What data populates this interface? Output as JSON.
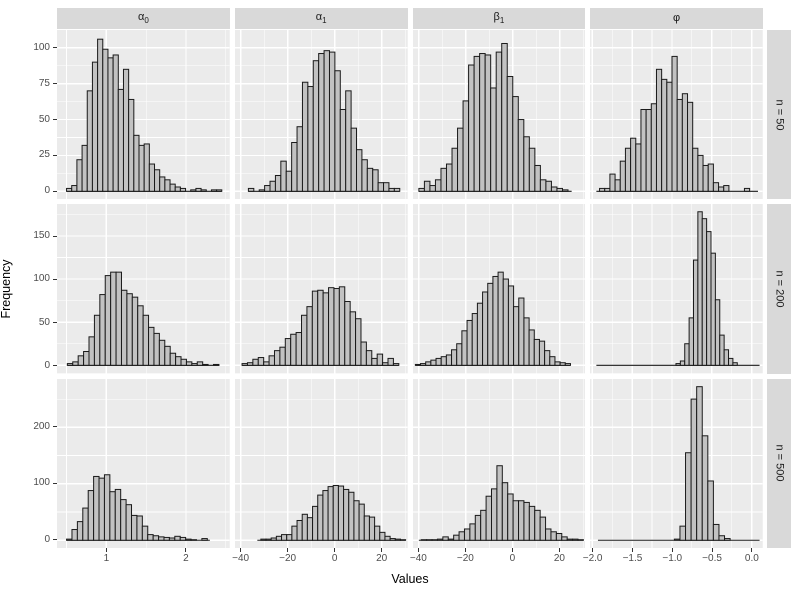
{
  "chart_data": {
    "type": "bar",
    "subtype": "faceted-histogram-grid",
    "title": "",
    "xlabel": "Values",
    "ylabel": "Frequency",
    "legend": "none",
    "grid": "on",
    "facet_columns": [
      {
        "base": "α",
        "sub": "0"
      },
      {
        "base": "α",
        "sub": "1"
      },
      {
        "base": "β",
        "sub": "1"
      },
      {
        "base": "φ",
        "sub": ""
      }
    ],
    "facet_rows": [
      "n = 50",
      "n = 200",
      "n = 500"
    ],
    "col_scales": [
      {
        "xlim": [
          0.38,
          2.55
        ],
        "ticks": [
          1,
          2
        ],
        "tick_labels": [
          "1",
          "2"
        ],
        "minor": [
          0.5,
          1.5,
          2.5
        ]
      },
      {
        "xlim": [
          -42.5,
          31
        ],
        "ticks": [
          -40,
          -20,
          0,
          20
        ],
        "tick_labels": [
          "−40",
          "−20",
          "0",
          "20"
        ],
        "minor": [
          -30,
          -10,
          10,
          30
        ]
      },
      {
        "xlim": [
          -42.5,
          31
        ],
        "ticks": [
          -40,
          -20,
          0,
          20
        ],
        "tick_labels": [
          "−40",
          "−20",
          "0",
          "20"
        ],
        "minor": [
          -30,
          -10,
          10,
          30
        ]
      },
      {
        "xlim": [
          -2.03,
          0.14
        ],
        "ticks": [
          -2.0,
          -1.5,
          -1.0,
          -0.5,
          0.0
        ],
        "tick_labels": [
          "−2.0",
          "−1.5",
          "−1.0",
          "−0.5",
          "0.0"
        ],
        "minor": [
          -1.75,
          -1.25,
          -0.75,
          -0.25
        ]
      }
    ],
    "row_scales": [
      {
        "ylim": [
          -5.6,
          112.4
        ],
        "ticks": [
          0,
          25,
          50,
          75,
          100
        ],
        "tick_labels": [
          "0",
          "25",
          "50",
          "75",
          "100"
        ],
        "minor": [
          12.5,
          37.5,
          62.5,
          87.5
        ]
      },
      {
        "ylim": [
          -9.3,
          187.0
        ],
        "ticks": [
          0,
          50,
          100,
          150
        ],
        "tick_labels": [
          "0",
          "50",
          "100",
          "150"
        ],
        "minor": [
          25,
          75,
          125,
          175
        ]
      },
      {
        "ylim": [
          -14.3,
          285.6
        ],
        "ticks": [
          0,
          100,
          200
        ],
        "tick_labels": [
          "0",
          "100",
          "200"
        ],
        "minor": [
          50,
          150,
          250
        ]
      }
    ],
    "panels": [
      {
        "row": 0,
        "col": 0,
        "bin_start": 0.5,
        "bin_width": 0.065,
        "baseline": [
          0.5,
          2.45
        ],
        "counts": [
          2,
          4,
          22,
          32,
          70,
          90,
          106,
          99,
          93,
          95,
          71,
          85,
          64,
          39,
          32,
          33,
          19,
          15,
          10,
          8,
          5,
          3,
          2,
          0,
          1,
          2,
          1,
          0,
          1,
          1
        ]
      },
      {
        "row": 0,
        "col": 1,
        "bin_start": -36.8,
        "bin_width": 2.3,
        "baseline": [
          -36.8,
          27.6
        ],
        "counts": [
          2,
          0,
          1,
          4,
          7,
          11,
          21,
          14,
          34,
          45,
          76,
          73,
          91,
          96,
          98,
          97,
          84,
          57,
          70,
          44,
          29,
          22,
          16,
          15,
          6,
          6,
          2,
          2
        ]
      },
      {
        "row": 0,
        "col": 2,
        "bin_start": -40.0,
        "bin_width": 2.35,
        "baseline": [
          -40.0,
          25.0
        ],
        "counts": [
          2,
          7,
          4,
          8,
          16,
          19,
          30,
          44,
          63,
          88,
          94,
          96,
          95,
          72,
          97,
          103,
          80,
          66,
          50,
          38,
          30,
          18,
          8,
          7,
          3,
          2,
          1
        ]
      },
      {
        "row": 0,
        "col": 3,
        "bin_start": -1.91,
        "bin_width": 0.065,
        "baseline": [
          -1.95,
          0.08
        ],
        "counts": [
          2,
          2,
          12,
          8,
          21,
          30,
          37,
          33,
          57,
          57,
          61,
          85,
          78,
          76,
          94,
          64,
          68,
          62,
          30,
          25,
          18,
          19,
          6,
          3,
          4,
          0,
          0,
          0,
          2
        ]
      },
      {
        "row": 1,
        "col": 0,
        "bin_start": 0.51,
        "bin_width": 0.068,
        "baseline": [
          0.51,
          2.42
        ],
        "counts": [
          2,
          4,
          11,
          16,
          33,
          58,
          82,
          104,
          108,
          108,
          87,
          83,
          79,
          69,
          58,
          44,
          37,
          29,
          22,
          14,
          10,
          7,
          4,
          2,
          4,
          1,
          0,
          1
        ]
      },
      {
        "row": 1,
        "col": 1,
        "bin_start": -39.5,
        "bin_width": 2.3,
        "baseline": [
          -39.5,
          27.2
        ],
        "counts": [
          2,
          3,
          7,
          9,
          4,
          11,
          17,
          21,
          31,
          36,
          38,
          58,
          68,
          86,
          87,
          84,
          90,
          89,
          91,
          74,
          62,
          54,
          27,
          17,
          8,
          13,
          3,
          8,
          2
        ]
      },
      {
        "row": 1,
        "col": 2,
        "bin_start": -41.5,
        "bin_width": 2.2,
        "baseline": [
          -41.5,
          24.5
        ],
        "counts": [
          1,
          2,
          4,
          6,
          8,
          10,
          12,
          18,
          25,
          40,
          52,
          60,
          72,
          85,
          95,
          103,
          108,
          100,
          92,
          68,
          78,
          55,
          41,
          30,
          28,
          17,
          10,
          4,
          3,
          2
        ]
      },
      {
        "row": 1,
        "col": 3,
        "bin_start": -0.95,
        "bin_width": 0.055,
        "baseline": [
          -1.95,
          0.1
        ],
        "counts": [
          2,
          5,
          25,
          55,
          122,
          178,
          170,
          155,
          130,
          76,
          35,
          18,
          8,
          3
        ]
      },
      {
        "row": 2,
        "col": 0,
        "bin_start": 0.5,
        "bin_width": 0.068,
        "baseline": [
          0.5,
          2.3
        ],
        "counts": [
          2,
          19,
          33,
          57,
          88,
          113,
          110,
          116,
          86,
          90,
          72,
          63,
          44,
          43,
          25,
          10,
          8,
          6,
          5,
          4,
          7,
          5,
          2,
          1,
          0,
          3
        ]
      },
      {
        "row": 2,
        "col": 1,
        "bin_start": -31.5,
        "bin_width": 2.2,
        "baseline": [
          -33.0,
          30.1
        ],
        "counts": [
          2,
          2,
          4,
          7,
          10,
          10,
          25,
          35,
          46,
          40,
          60,
          80,
          88,
          95,
          97,
          96,
          90,
          85,
          70,
          64,
          43,
          41,
          25,
          14,
          7,
          3,
          2,
          1
        ]
      },
      {
        "row": 2,
        "col": 2,
        "bin_start": -39.0,
        "bin_width": 2.3,
        "baseline": [
          -40.0,
          30.0
        ],
        "counts": [
          1,
          1,
          1,
          2,
          6,
          2,
          9,
          15,
          20,
          29,
          44,
          53,
          78,
          91,
          132,
          102,
          82,
          70,
          70,
          67,
          60,
          53,
          41,
          20,
          15,
          12,
          6,
          2,
          2,
          1
        ]
      },
      {
        "row": 2,
        "col": 3,
        "bin_start": -0.97,
        "bin_width": 0.07,
        "baseline": [
          -1.93,
          0.1
        ],
        "counts": [
          2,
          25,
          155,
          250,
          272,
          185,
          105,
          28,
          8,
          3
        ]
      }
    ],
    "style": {
      "panel_bg": "#EBEBEB",
      "strip_bg": "#D9D9D9",
      "grid_color": "#FFFFFF",
      "bar_fill": "#C2C2C2",
      "bar_stroke": "#1A1A1A",
      "tick_text_color": "#4D4D4D",
      "axis_title_color": "#000000",
      "tick_mark_color": "#333333"
    }
  }
}
